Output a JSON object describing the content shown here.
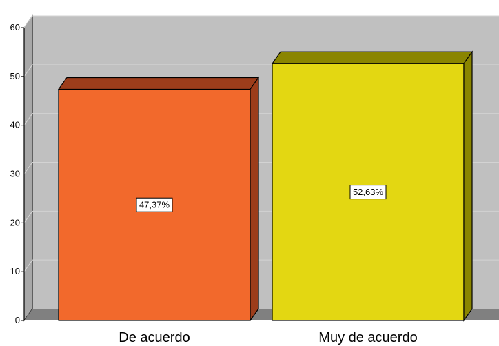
{
  "chart_data": {
    "type": "bar",
    "categories": [
      "De acuerdo",
      "Muy de acuerdo"
    ],
    "values": [
      47.37,
      52.63
    ],
    "data_labels": [
      "47,37%",
      "52,63%"
    ],
    "yticks": [
      "0",
      "10",
      "20",
      "30",
      "40",
      "50",
      "60"
    ],
    "ylim": [
      0,
      60
    ],
    "grid": true,
    "three_d": true,
    "colors": {
      "bars": [
        "#f2692c",
        "#e3d712"
      ],
      "bar_sides": [
        "#9c3d1b",
        "#8a8500"
      ],
      "wall": "#c0c0c0",
      "floor": "#808080",
      "gridline": "#d3d3d3"
    }
  }
}
